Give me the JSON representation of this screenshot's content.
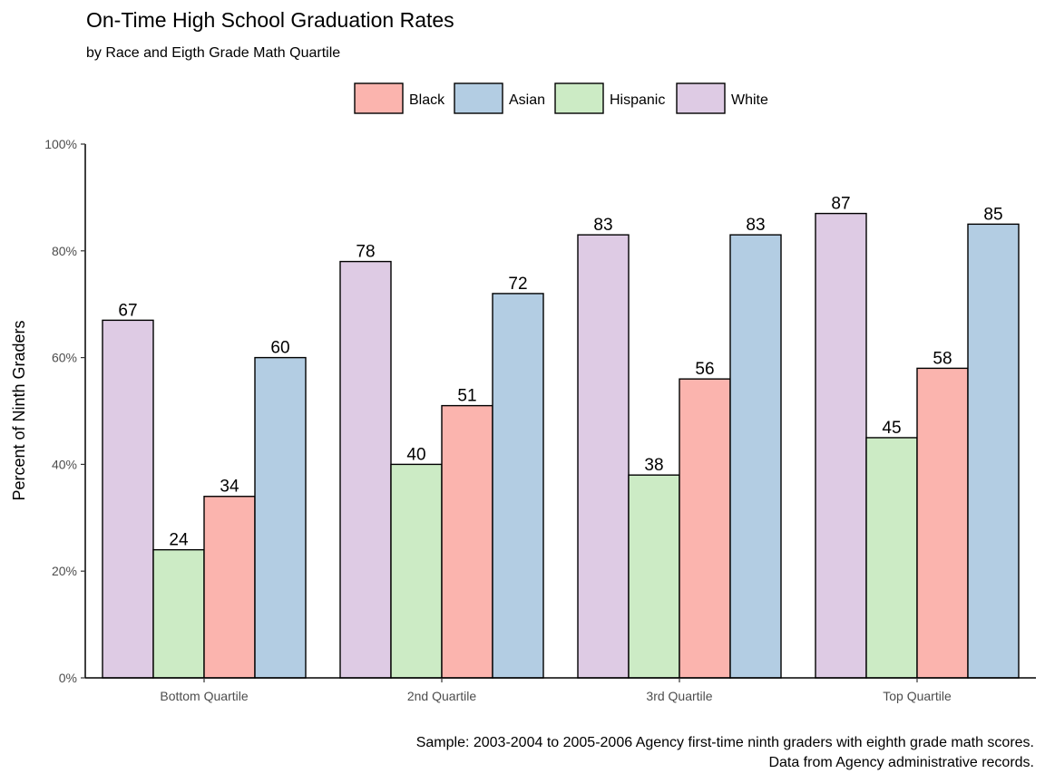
{
  "chart_data": {
    "type": "bar",
    "title": "On-Time High School Graduation Rates",
    "subtitle": "by Race and Eigth Grade Math Quartile",
    "ylabel": "Percent of Ninth Graders",
    "xlabel": "",
    "caption": [
      "Sample: 2003-2004 to 2005-2006 Agency first-time ninth graders with eighth grade math scores.",
      "Data from Agency administrative records."
    ],
    "ylim": [
      0,
      100
    ],
    "yticks": [
      0,
      20,
      40,
      60,
      80,
      100
    ],
    "ytick_labels": [
      "0%",
      "20%",
      "40%",
      "60%",
      "80%",
      "100%"
    ],
    "grid": false,
    "legend_position": "top",
    "legend_order": [
      "Black",
      "Asian",
      "Hispanic",
      "White"
    ],
    "categories": [
      "Bottom Quartile",
      "2nd Quartile",
      "3rd Quartile",
      "Top Quartile"
    ],
    "series": [
      {
        "name": "White",
        "color": "#DECBE4",
        "values": [
          67,
          78,
          83,
          87
        ]
      },
      {
        "name": "Hispanic",
        "color": "#CCEBC5",
        "values": [
          24,
          40,
          38,
          45
        ]
      },
      {
        "name": "Black",
        "color": "#FBB4AE",
        "values": [
          34,
          51,
          56,
          58
        ]
      },
      {
        "name": "Asian",
        "color": "#B3CDE3",
        "values": [
          60,
          72,
          83,
          85
        ]
      }
    ]
  }
}
